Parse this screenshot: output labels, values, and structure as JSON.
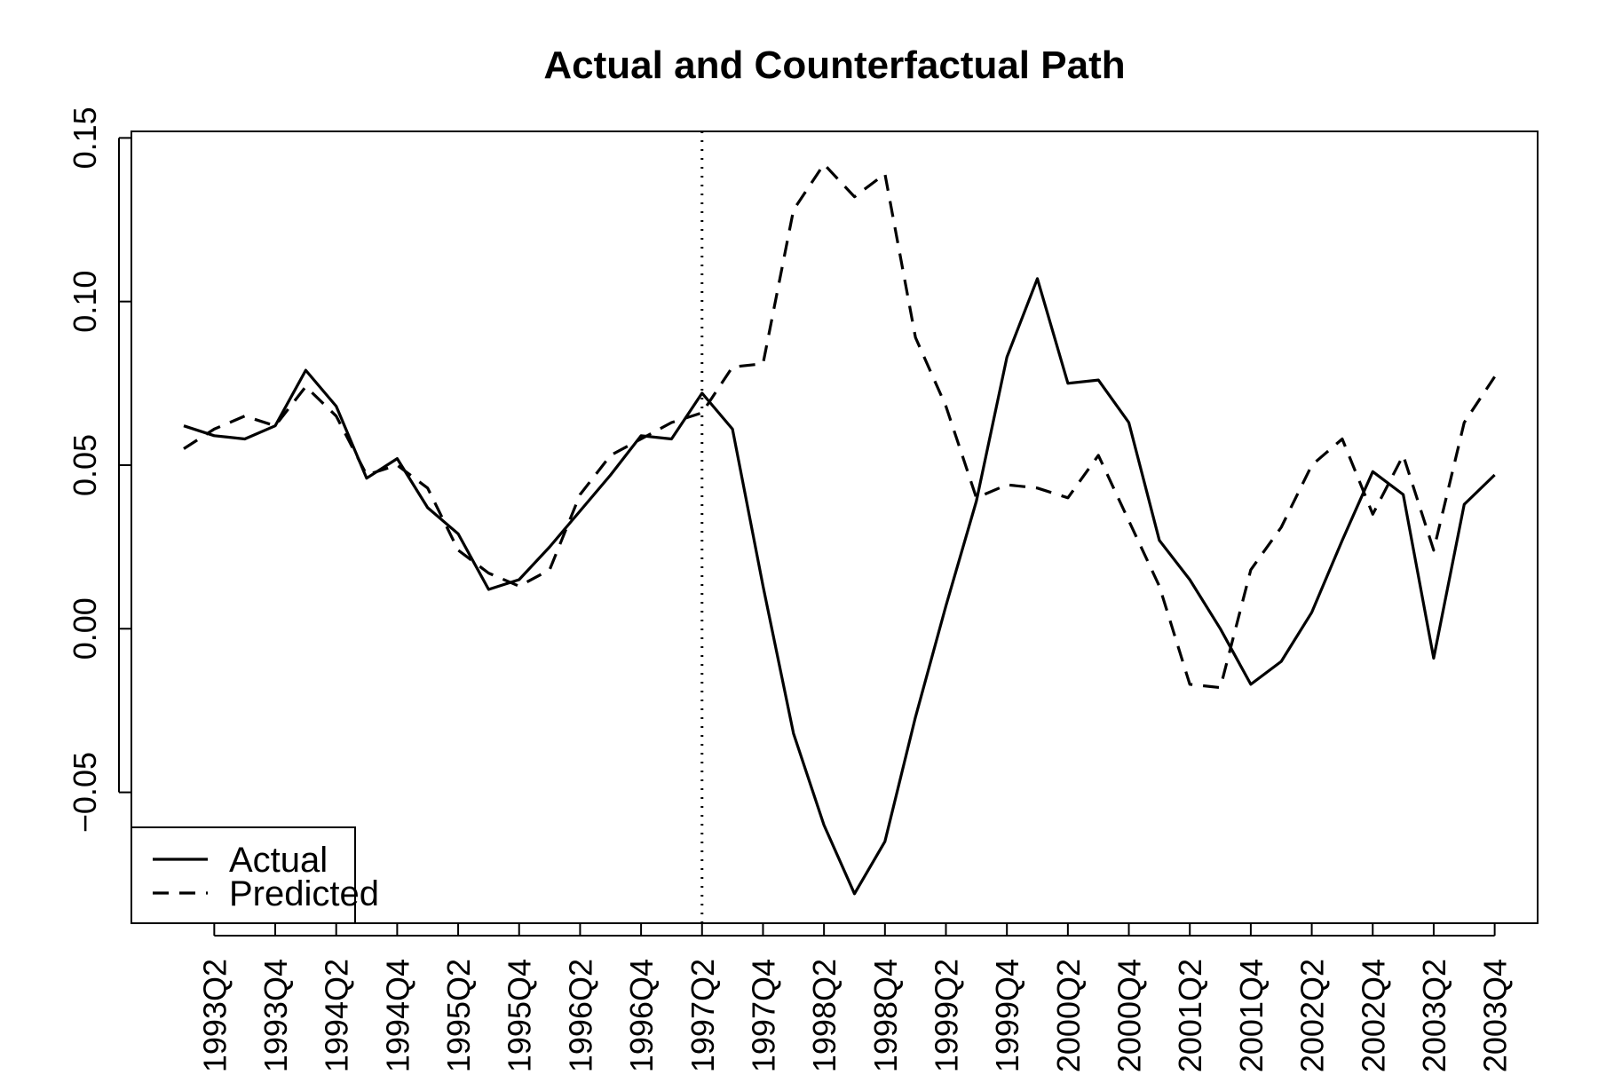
{
  "chart_data": {
    "type": "line",
    "title": "Actual and Counterfactual Path",
    "xlabel": "",
    "ylabel": "",
    "x": [
      "1993Q1",
      "1993Q2",
      "1993Q3",
      "1993Q4",
      "1994Q1",
      "1994Q2",
      "1994Q3",
      "1994Q4",
      "1995Q1",
      "1995Q2",
      "1995Q3",
      "1995Q4",
      "1996Q1",
      "1996Q2",
      "1996Q3",
      "1996Q4",
      "1997Q1",
      "1997Q2",
      "1997Q3",
      "1997Q4",
      "1998Q1",
      "1998Q2",
      "1998Q3",
      "1998Q4",
      "1999Q1",
      "1999Q2",
      "1999Q3",
      "1999Q4",
      "2000Q1",
      "2000Q2",
      "2000Q3",
      "2000Q4",
      "2001Q1",
      "2001Q2",
      "2001Q3",
      "2001Q4",
      "2002Q1",
      "2002Q2",
      "2002Q3",
      "2002Q4",
      "2003Q1",
      "2003Q2",
      "2003Q3",
      "2003Q4"
    ],
    "x_tick_labels": [
      "1993Q2",
      "1993Q4",
      "1994Q2",
      "1994Q4",
      "1995Q2",
      "1995Q4",
      "1996Q2",
      "1996Q4",
      "1997Q2",
      "1997Q4",
      "1998Q2",
      "1998Q4",
      "1999Q2",
      "1999Q4",
      "2000Q2",
      "2000Q4",
      "2001Q2",
      "2001Q4",
      "2002Q2",
      "2002Q4",
      "2003Q2",
      "2003Q4"
    ],
    "y_ticks": [
      -0.05,
      0.0,
      0.05,
      0.1,
      0.15
    ],
    "y_tick_labels": [
      "−0.05",
      "0.00",
      "0.05",
      "0.10",
      "0.15"
    ],
    "ylim": [
      -0.09,
      0.152
    ],
    "vertical_marker": "1997Q2",
    "grid": false,
    "legend_position": "bottom-left",
    "series": [
      {
        "name": "Actual",
        "line_style": "solid",
        "values": [
          0.062,
          0.059,
          0.058,
          0.062,
          0.079,
          0.068,
          0.046,
          0.052,
          0.037,
          0.029,
          0.012,
          0.015,
          0.025,
          0.036,
          0.047,
          0.059,
          0.058,
          0.072,
          0.061,
          0.013,
          -0.032,
          -0.06,
          -0.081,
          -0.065,
          -0.027,
          0.007,
          0.039,
          0.083,
          0.107,
          0.075,
          0.076,
          0.063,
          0.027,
          0.015,
          0.0,
          -0.017,
          -0.01,
          0.005,
          0.027,
          0.048,
          0.041,
          -0.009,
          0.038,
          0.047
        ]
      },
      {
        "name": "Predicted",
        "line_style": "dashed",
        "values": [
          0.055,
          0.061,
          0.065,
          0.062,
          0.074,
          0.065,
          0.047,
          0.05,
          0.043,
          0.024,
          0.017,
          0.013,
          0.018,
          0.041,
          0.053,
          0.058,
          0.063,
          0.066,
          0.08,
          0.081,
          0.128,
          0.142,
          0.132,
          0.139,
          0.089,
          0.068,
          0.04,
          0.044,
          0.043,
          0.04,
          0.053,
          0.033,
          0.013,
          -0.017,
          -0.018,
          0.018,
          0.031,
          0.05,
          0.058,
          0.035,
          0.053,
          0.024,
          0.063,
          0.077
        ]
      }
    ]
  }
}
